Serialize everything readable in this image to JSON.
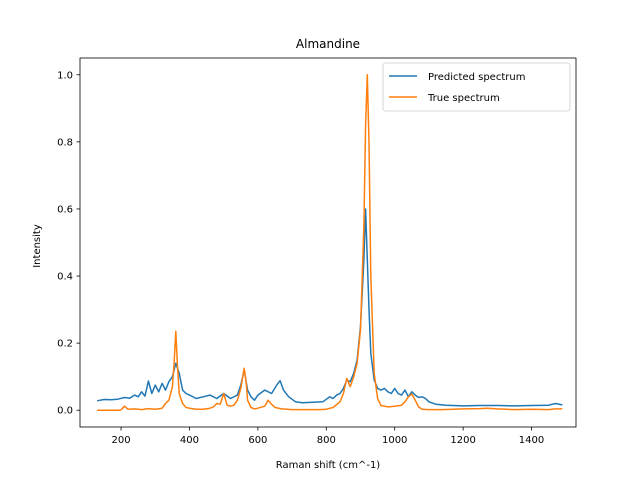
{
  "chart_data": {
    "type": "line",
    "title": "Almandine",
    "xlabel": "Raman shift (cm^-1)",
    "ylabel": "Intensity",
    "xlim": [
      80,
      1530
    ],
    "ylim": [
      -0.05,
      1.05
    ],
    "xticks": [
      200,
      400,
      600,
      800,
      1000,
      1200,
      1400
    ],
    "yticks": [
      0.0,
      0.2,
      0.4,
      0.6,
      0.8,
      1.0
    ],
    "xtick_labels": [
      "200",
      "400",
      "600",
      "800",
      "1000",
      "1200",
      "1400"
    ],
    "ytick_labels": [
      "0.0",
      "0.2",
      "0.4",
      "0.6",
      "0.8",
      "1.0"
    ],
    "grid": false,
    "legend_position": "top-right",
    "series": [
      {
        "name": "Predicted spectrum",
        "color": "#1f77b4",
        "x": [
          130,
          150,
          170,
          190,
          210,
          225,
          240,
          250,
          260,
          270,
          280,
          290,
          300,
          310,
          320,
          330,
          340,
          350,
          360,
          370,
          380,
          390,
          400,
          420,
          440,
          460,
          480,
          500,
          520,
          540,
          550,
          560,
          570,
          580,
          590,
          600,
          620,
          640,
          655,
          665,
          675,
          690,
          710,
          730,
          760,
          790,
          810,
          820,
          830,
          840,
          850,
          860,
          870,
          880,
          890,
          900,
          910,
          915,
          920,
          925,
          930,
          940,
          950,
          960,
          970,
          980,
          990,
          1000,
          1010,
          1020,
          1030,
          1040,
          1050,
          1060,
          1070,
          1080,
          1090,
          1100,
          1120,
          1150,
          1200,
          1250,
          1300,
          1350,
          1400,
          1450,
          1470,
          1490
        ],
        "y": [
          0.028,
          0.032,
          0.031,
          0.033,
          0.038,
          0.036,
          0.045,
          0.04,
          0.055,
          0.042,
          0.087,
          0.05,
          0.075,
          0.055,
          0.08,
          0.06,
          0.085,
          0.1,
          0.14,
          0.11,
          0.06,
          0.05,
          0.045,
          0.035,
          0.04,
          0.045,
          0.035,
          0.05,
          0.035,
          0.045,
          0.075,
          0.12,
          0.06,
          0.04,
          0.03,
          0.045,
          0.06,
          0.05,
          0.075,
          0.088,
          0.06,
          0.04,
          0.025,
          0.022,
          0.024,
          0.025,
          0.04,
          0.035,
          0.045,
          0.05,
          0.065,
          0.09,
          0.085,
          0.11,
          0.15,
          0.25,
          0.45,
          0.6,
          0.45,
          0.3,
          0.17,
          0.09,
          0.065,
          0.06,
          0.065,
          0.055,
          0.05,
          0.065,
          0.05,
          0.045,
          0.06,
          0.04,
          0.055,
          0.045,
          0.038,
          0.04,
          0.035,
          0.025,
          0.018,
          0.015,
          0.013,
          0.014,
          0.014,
          0.013,
          0.014,
          0.015,
          0.02,
          0.016
        ]
      },
      {
        "name": "True spectrum",
        "color": "#ff7f0e",
        "x": [
          130,
          150,
          170,
          190,
          200,
          210,
          220,
          240,
          260,
          280,
          300,
          320,
          330,
          340,
          350,
          355,
          360,
          365,
          370,
          380,
          390,
          400,
          420,
          440,
          460,
          470,
          480,
          490,
          500,
          510,
          520,
          530,
          540,
          550,
          560,
          565,
          570,
          580,
          590,
          600,
          620,
          630,
          640,
          650,
          670,
          700,
          740,
          780,
          800,
          820,
          840,
          850,
          860,
          870,
          880,
          890,
          900,
          910,
          915,
          920,
          925,
          930,
          940,
          950,
          960,
          980,
          1000,
          1020,
          1030,
          1040,
          1050,
          1060,
          1070,
          1080,
          1100,
          1120,
          1140,
          1200,
          1250,
          1270,
          1300,
          1350,
          1400,
          1450,
          1470,
          1490
        ],
        "y": [
          0.0,
          0.0,
          0.0,
          0.0,
          0.001,
          0.012,
          0.003,
          0.004,
          0.002,
          0.005,
          0.003,
          0.006,
          0.02,
          0.03,
          0.07,
          0.14,
          0.235,
          0.13,
          0.05,
          0.02,
          0.008,
          0.006,
          0.003,
          0.003,
          0.006,
          0.01,
          0.02,
          0.018,
          0.05,
          0.015,
          0.012,
          0.015,
          0.03,
          0.065,
          0.125,
          0.09,
          0.03,
          0.008,
          0.004,
          0.006,
          0.012,
          0.03,
          0.018,
          0.008,
          0.004,
          0.002,
          0.002,
          0.002,
          0.003,
          0.008,
          0.025,
          0.05,
          0.095,
          0.07,
          0.1,
          0.14,
          0.24,
          0.55,
          0.85,
          1.0,
          0.8,
          0.4,
          0.11,
          0.035,
          0.014,
          0.01,
          0.012,
          0.015,
          0.025,
          0.04,
          0.048,
          0.03,
          0.01,
          0.003,
          0.002,
          0.002,
          0.002,
          0.004,
          0.005,
          0.006,
          0.004,
          0.002,
          0.003,
          0.002,
          0.004,
          0.004
        ]
      }
    ]
  }
}
